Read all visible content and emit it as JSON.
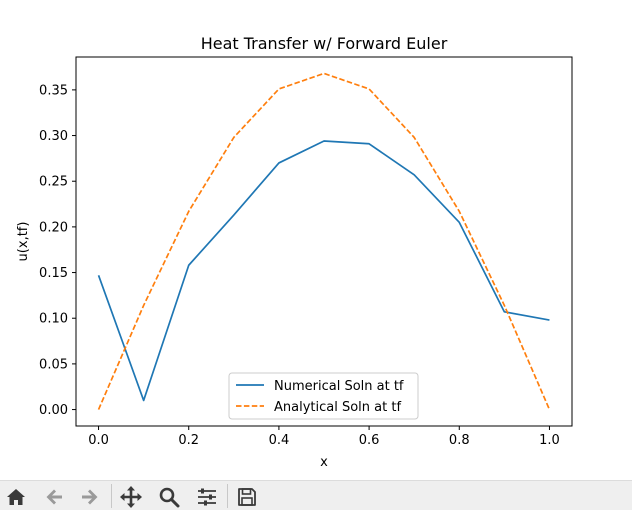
{
  "chart_data": {
    "type": "line",
    "title": "Heat Transfer w/ Forward Euler",
    "xlabel": "x",
    "ylabel": "u(x,tf)",
    "xlim": [
      -0.05,
      1.05
    ],
    "ylim": [
      -0.018,
      0.386
    ],
    "xticks": [
      0.0,
      0.2,
      0.4,
      0.6,
      0.8,
      1.0
    ],
    "xtick_labels": [
      "0.0",
      "0.2",
      "0.4",
      "0.6",
      "0.8",
      "1.0"
    ],
    "yticks": [
      0.0,
      0.05,
      0.1,
      0.15,
      0.2,
      0.25,
      0.3,
      0.35
    ],
    "ytick_labels": [
      "0.00",
      "0.05",
      "0.10",
      "0.15",
      "0.20",
      "0.25",
      "0.30",
      "0.35"
    ],
    "grid": false,
    "legend_position": "lower center",
    "x": [
      0.0,
      0.1,
      0.2,
      0.3,
      0.4,
      0.5,
      0.6,
      0.7,
      0.8,
      0.9,
      1.0
    ],
    "series": [
      {
        "name": "Numerical Soln at tf",
        "color": "#1f77b4",
        "linestyle": "solid",
        "values": [
          0.147,
          0.01,
          0.158,
          0.213,
          0.27,
          0.294,
          0.291,
          0.257,
          0.205,
          0.107,
          0.098
        ]
      },
      {
        "name": "Analytical Soln at tf",
        "color": "#ff7f0e",
        "linestyle": "dashed",
        "values": [
          0.0,
          0.114,
          0.217,
          0.298,
          0.351,
          0.368,
          0.351,
          0.298,
          0.217,
          0.114,
          0.0
        ]
      }
    ]
  },
  "toolbar": {
    "buttons": [
      "home-icon",
      "back-arrow-icon",
      "forward-arrow-icon",
      "pan-move-icon",
      "zoom-magnifier-icon",
      "configure-subplots-icon",
      "save-disk-icon"
    ]
  }
}
